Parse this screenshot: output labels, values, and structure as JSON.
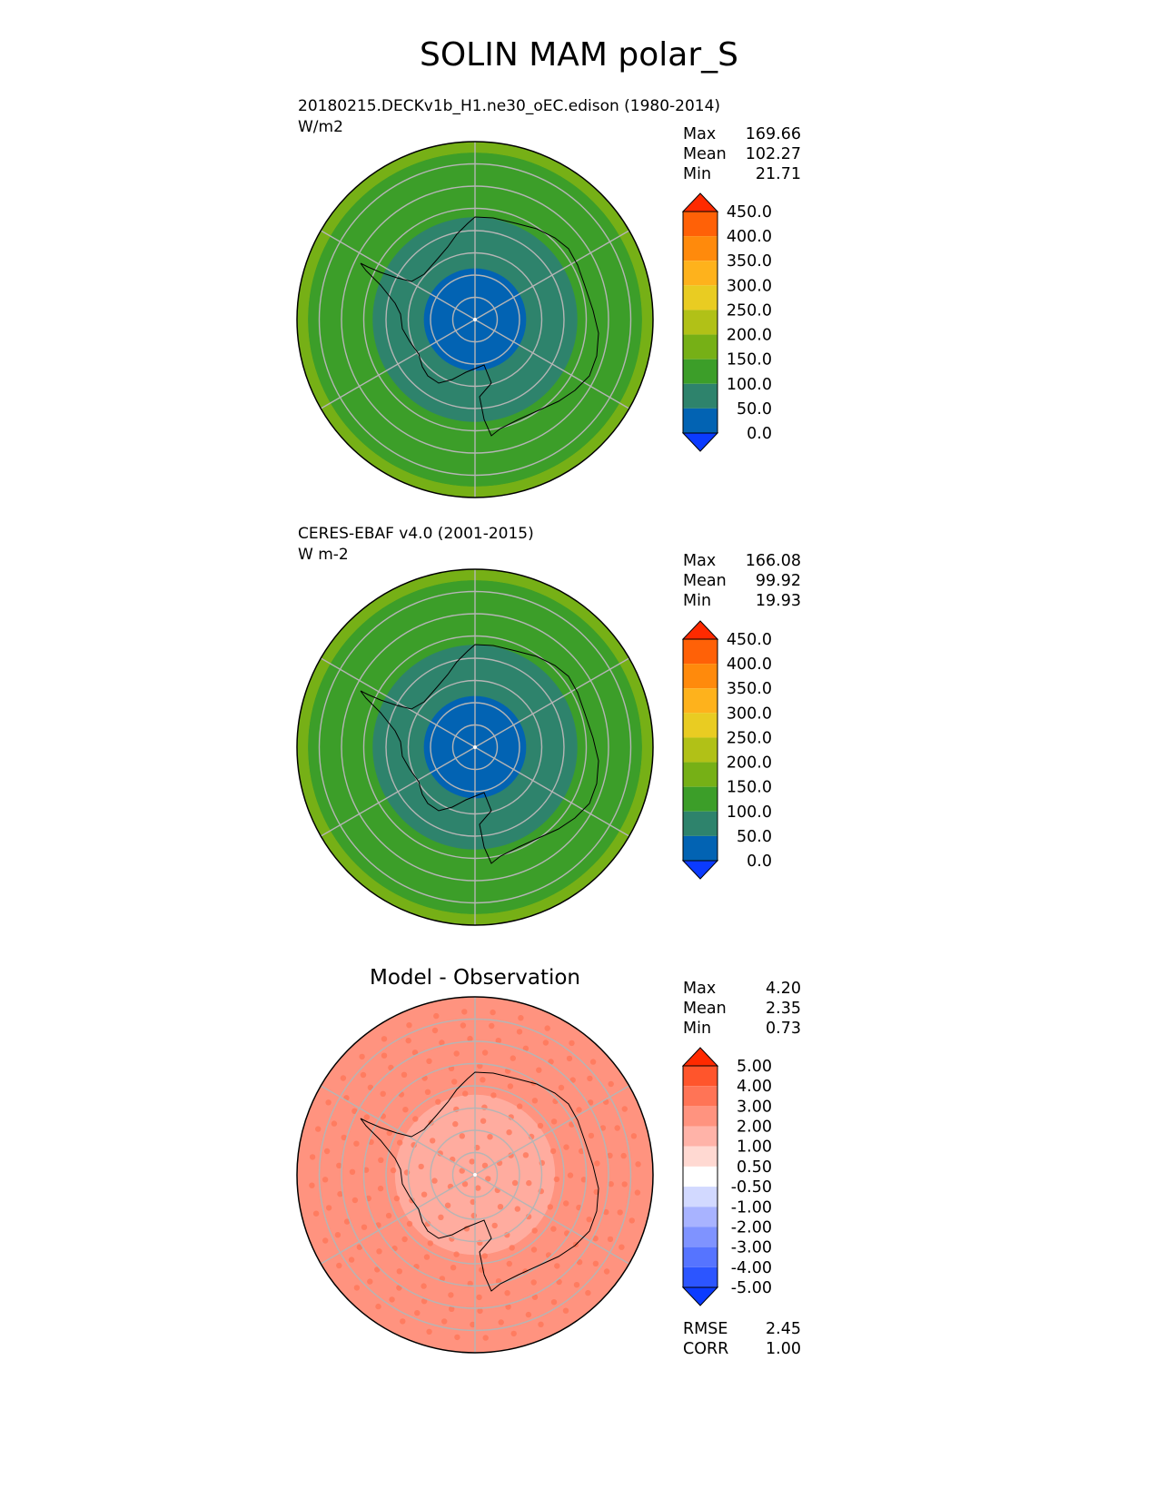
{
  "title": "SOLIN MAM polar_S",
  "chart_data": [
    {
      "type": "heatmap",
      "projection": "south polar stereographic",
      "title_left": "20180215.DECKv1b_H1.ne30_oEC.edison (1980-2014)",
      "units": "W/m2",
      "stats": [
        {
          "label": "Max",
          "value": "169.66"
        },
        {
          "label": "Mean",
          "value": "102.27"
        },
        {
          "label": "Min",
          "value": "21.71"
        }
      ],
      "colorbar": {
        "ticks": [
          "0.0",
          "50.0",
          "100.0",
          "150.0",
          "200.0",
          "250.0",
          "300.0",
          "350.0",
          "400.0",
          "450.0"
        ],
        "colors": [
          "#0b3bff",
          "#0263b3",
          "#2e836c",
          "#3c9e29",
          "#76b016",
          "#b1c117",
          "#e9cc22",
          "#feb21c",
          "#ff8a0c",
          "#ff6107",
          "#ff2a00"
        ],
        "extend": "both"
      },
      "rings": [
        {
          "lat": -90,
          "value": 21.71,
          "color": "#0263b3"
        },
        {
          "lat": -80,
          "value": 60,
          "color": "#0263b3"
        },
        {
          "lat": -70,
          "value": 80,
          "color": "#2e836c"
        },
        {
          "lat": -60,
          "value": 110,
          "color": "#3c9e29"
        },
        {
          "lat": -55,
          "value": 150,
          "color": "#76b016"
        },
        {
          "lat": -50,
          "value": 169.66,
          "color": "#76b016"
        }
      ]
    },
    {
      "type": "heatmap",
      "projection": "south polar stereographic",
      "title_left": "CERES-EBAF v4.0 (2001-2015)",
      "units": "W m-2",
      "stats": [
        {
          "label": "Max",
          "value": "166.08"
        },
        {
          "label": "Mean",
          "value": "99.92"
        },
        {
          "label": "Min",
          "value": "19.93"
        }
      ],
      "colorbar": {
        "ticks": [
          "0.0",
          "50.0",
          "100.0",
          "150.0",
          "200.0",
          "250.0",
          "300.0",
          "350.0",
          "400.0",
          "450.0"
        ],
        "colors": [
          "#0b3bff",
          "#0263b3",
          "#2e836c",
          "#3c9e29",
          "#76b016",
          "#b1c117",
          "#e9cc22",
          "#feb21c",
          "#ff8a0c",
          "#ff6107",
          "#ff2a00"
        ],
        "extend": "both"
      },
      "rings": [
        {
          "lat": -90,
          "value": 19.93,
          "color": "#0263b3"
        },
        {
          "lat": -80,
          "value": 60,
          "color": "#0263b3"
        },
        {
          "lat": -70,
          "value": 80,
          "color": "#2e836c"
        },
        {
          "lat": -60,
          "value": 110,
          "color": "#3c9e29"
        },
        {
          "lat": -55,
          "value": 150,
          "color": "#76b016"
        },
        {
          "lat": -50,
          "value": 166.08,
          "color": "#76b016"
        }
      ]
    },
    {
      "type": "heatmap",
      "projection": "south polar stereographic",
      "title_center": "Model - Observation",
      "stats": [
        {
          "label": "Max",
          "value": "4.20"
        },
        {
          "label": "Mean",
          "value": "2.35"
        },
        {
          "label": "Min",
          "value": "0.73"
        }
      ],
      "extra_stats": [
        {
          "label": "RMSE",
          "value": "2.45"
        },
        {
          "label": "CORR",
          "value": "1.00"
        }
      ],
      "colorbar": {
        "ticks": [
          "-5.00",
          "-4.00",
          "-3.00",
          "-2.00",
          "-1.00",
          "-0.50",
          "0.50",
          "1.00",
          "2.00",
          "3.00",
          "4.00",
          "5.00"
        ],
        "colors": [
          "#0b3bff",
          "#2c55ff",
          "#5674ff",
          "#7f93ff",
          "#a8b3ff",
          "#d2d9ff",
          "#ffffff",
          "#ffd9d2",
          "#ffb3a8",
          "#ff937f",
          "#ff7456",
          "#ff552c",
          "#ff2a00"
        ],
        "extend": "both"
      },
      "fill_color": "#ff937f",
      "pattern_color": "#ff7456",
      "inner_color": "#ffb3a8"
    }
  ]
}
